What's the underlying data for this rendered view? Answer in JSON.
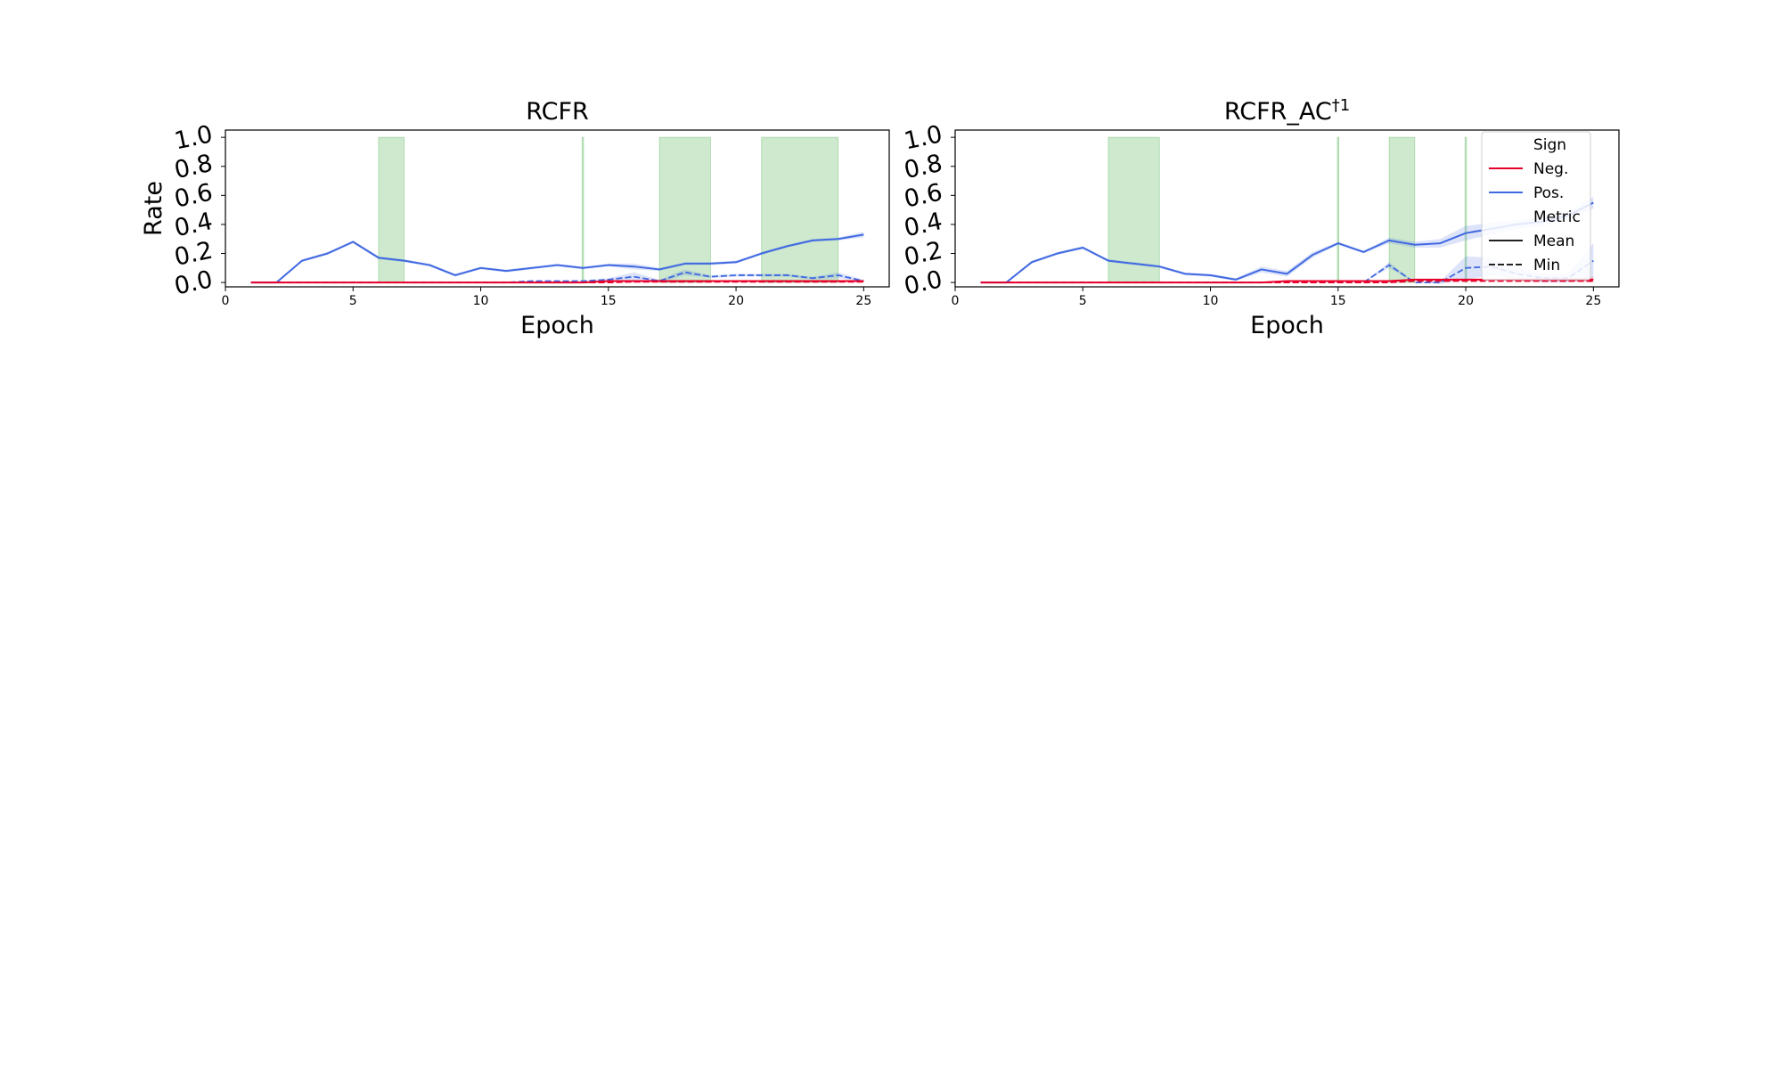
{
  "chart_data": [
    {
      "type": "line",
      "title": "RCFR",
      "title_sup": "",
      "xlabel": "Epoch",
      "ylabel": "Rate",
      "xlim": [
        0,
        26
      ],
      "ylim": [
        -0.03,
        1.05
      ],
      "xticks": [
        0,
        5,
        10,
        15,
        20,
        25
      ],
      "yticks": [
        0.0,
        0.2,
        0.4,
        0.6,
        0.8,
        1.0
      ],
      "ytick_labels": [
        "0.0",
        "0.2",
        "0.4",
        "0.6",
        "0.8",
        "1.0"
      ],
      "grid": false,
      "highlight_color": "#2ca02c",
      "highlights": [
        [
          6,
          7
        ],
        [
          13.97,
          14.03
        ],
        [
          17,
          19
        ],
        [
          21,
          24
        ]
      ],
      "x": [
        1,
        2,
        3,
        4,
        5,
        6,
        7,
        8,
        9,
        10,
        11,
        12,
        13,
        14,
        15,
        16,
        17,
        18,
        19,
        20,
        21,
        22,
        23,
        24,
        25
      ],
      "series": [
        {
          "name": "Pos.",
          "color": "#4169e1",
          "metric": "Mean",
          "values": [
            0,
            0,
            0.15,
            0.2,
            0.28,
            0.17,
            0.15,
            0.12,
            0.05,
            0.1,
            0.08,
            0.1,
            0.12,
            0.1,
            0.12,
            0.11,
            0.09,
            0.13,
            0.13,
            0.14,
            0.2,
            0.25,
            0.29,
            0.3,
            0.33
          ],
          "band": [
            0,
            0,
            0.01,
            0.01,
            0.01,
            0.01,
            0.01,
            0.01,
            0.01,
            0.01,
            0.01,
            0.01,
            0.01,
            0.01,
            0.01,
            0.02,
            0.01,
            0.01,
            0.01,
            0.01,
            0.01,
            0.01,
            0.01,
            0.01,
            0.02
          ]
        },
        {
          "name": "Pos.",
          "color": "#4169e1",
          "metric": "Min",
          "values": [
            0,
            0,
            0,
            0,
            0,
            0,
            0,
            0,
            0,
            0,
            0,
            0.01,
            0.01,
            0.01,
            0.02,
            0.04,
            0.01,
            0.07,
            0.04,
            0.05,
            0.05,
            0.05,
            0.03,
            0.05,
            0.01
          ],
          "band": [
            0,
            0,
            0,
            0,
            0,
            0,
            0,
            0,
            0,
            0,
            0,
            0,
            0,
            0,
            0.01,
            0.03,
            0.01,
            0.02,
            0.01,
            0.01,
            0.01,
            0.01,
            0.01,
            0.02,
            0.01
          ]
        },
        {
          "name": "Neg.",
          "color": "#e8002a",
          "metric": "Mean",
          "values": [
            0,
            0,
            0,
            0,
            0,
            0,
            0,
            0,
            0,
            0,
            0,
            0,
            0,
            0,
            0.01,
            0.01,
            0.01,
            0.01,
            0.01,
            0.01,
            0.01,
            0.01,
            0.01,
            0.01,
            0.01
          ],
          "band": [
            0,
            0,
            0,
            0,
            0,
            0,
            0,
            0,
            0,
            0,
            0,
            0,
            0,
            0,
            0,
            0,
            0,
            0,
            0,
            0,
            0,
            0,
            0,
            0,
            0
          ]
        },
        {
          "name": "Neg.",
          "color": "#e8002a",
          "metric": "Min",
          "values": [
            0,
            0,
            0,
            0,
            0,
            0,
            0,
            0,
            0,
            0,
            0,
            0,
            0,
            0,
            0,
            0.005,
            0.005,
            0.005,
            0.005,
            0.005,
            0.005,
            0.005,
            0.005,
            0.005,
            0.005
          ],
          "band": [
            0,
            0,
            0,
            0,
            0,
            0,
            0,
            0,
            0,
            0,
            0,
            0,
            0,
            0,
            0,
            0,
            0,
            0,
            0,
            0,
            0,
            0,
            0,
            0,
            0
          ]
        }
      ],
      "legend": null
    },
    {
      "type": "line",
      "title": "RCFR_AC",
      "title_sup": "†1",
      "xlabel": "Epoch",
      "ylabel": "",
      "xlim": [
        0,
        26
      ],
      "ylim": [
        -0.03,
        1.05
      ],
      "xticks": [
        0,
        5,
        10,
        15,
        20,
        25
      ],
      "yticks": [
        0.0,
        0.2,
        0.4,
        0.6,
        0.8,
        1.0
      ],
      "ytick_labels": [
        "0.0",
        "0.2",
        "0.4",
        "0.6",
        "0.8",
        "1.0"
      ],
      "grid": false,
      "highlight_color": "#2ca02c",
      "highlights": [
        [
          6,
          8
        ],
        [
          14.97,
          15.03
        ],
        [
          17,
          18
        ],
        [
          19.97,
          20.03
        ]
      ],
      "x": [
        1,
        2,
        3,
        4,
        5,
        6,
        7,
        8,
        9,
        10,
        11,
        12,
        13,
        14,
        15,
        16,
        17,
        18,
        19,
        20,
        21,
        22,
        23,
        24,
        25
      ],
      "series": [
        {
          "name": "Pos.",
          "color": "#4169e1",
          "metric": "Mean",
          "values": [
            0,
            0,
            0.14,
            0.2,
            0.24,
            0.15,
            0.13,
            0.11,
            0.06,
            0.05,
            0.02,
            0.09,
            0.06,
            0.19,
            0.27,
            0.21,
            0.29,
            0.26,
            0.27,
            0.34,
            0.37,
            0.4,
            0.42,
            0.46,
            0.55
          ],
          "band": [
            0,
            0,
            0.01,
            0.01,
            0.01,
            0.01,
            0.01,
            0.01,
            0.01,
            0.01,
            0.01,
            0.02,
            0.02,
            0.02,
            0.01,
            0.01,
            0.02,
            0.02,
            0.03,
            0.05,
            0.04,
            0.03,
            0.03,
            0.03,
            0.04
          ]
        },
        {
          "name": "Pos.",
          "color": "#4169e1",
          "metric": "Min",
          "values": [
            0,
            0,
            0,
            0,
            0,
            0,
            0,
            0,
            0,
            0,
            0,
            0,
            0,
            0,
            0,
            0,
            0.12,
            0,
            0,
            0.1,
            0.11,
            0.06,
            0.03,
            0.03,
            0.15
          ],
          "band": [
            0,
            0,
            0,
            0,
            0,
            0,
            0,
            0,
            0,
            0,
            0,
            0,
            0,
            0,
            0,
            0,
            0.02,
            0,
            0.01,
            0.08,
            0.06,
            0.04,
            0.03,
            0.03,
            0.12
          ]
        },
        {
          "name": "Neg.",
          "color": "#e8002a",
          "metric": "Mean",
          "values": [
            0,
            0,
            0,
            0,
            0,
            0,
            0,
            0,
            0,
            0,
            0,
            0,
            0.01,
            0.01,
            0.01,
            0.01,
            0.01,
            0.02,
            0.02,
            0.02,
            0.02,
            0.02,
            0.02,
            0.02,
            0.02
          ],
          "band": [
            0,
            0,
            0,
            0,
            0,
            0,
            0,
            0,
            0,
            0,
            0,
            0,
            0,
            0,
            0,
            0,
            0,
            0,
            0,
            0,
            0,
            0.01,
            0.01,
            0.01,
            0.02
          ]
        },
        {
          "name": "Neg.",
          "color": "#e8002a",
          "metric": "Min",
          "values": [
            0,
            0,
            0,
            0,
            0,
            0,
            0,
            0,
            0,
            0,
            0,
            0,
            0,
            0,
            0,
            0,
            0,
            0.01,
            0.01,
            0.01,
            0.01,
            0.01,
            0.01,
            0.01,
            0.01
          ],
          "band": [
            0,
            0,
            0,
            0,
            0,
            0,
            0,
            0,
            0,
            0,
            0,
            0,
            0,
            0,
            0,
            0,
            0,
            0,
            0,
            0,
            0,
            0,
            0,
            0,
            0
          ]
        }
      ],
      "legend": {
        "placement": "top-right",
        "sections": [
          {
            "title": "Sign",
            "items": [
              {
                "label": "Neg.",
                "color": "#e8002a",
                "style": "solid"
              },
              {
                "label": "Pos.",
                "color": "#4169e1",
                "style": "solid"
              }
            ]
          },
          {
            "title": "Metric",
            "items": [
              {
                "label": "Mean",
                "color": "#222222",
                "style": "solid"
              },
              {
                "label": "Min",
                "color": "#222222",
                "style": "dashed"
              }
            ]
          }
        ]
      }
    }
  ]
}
